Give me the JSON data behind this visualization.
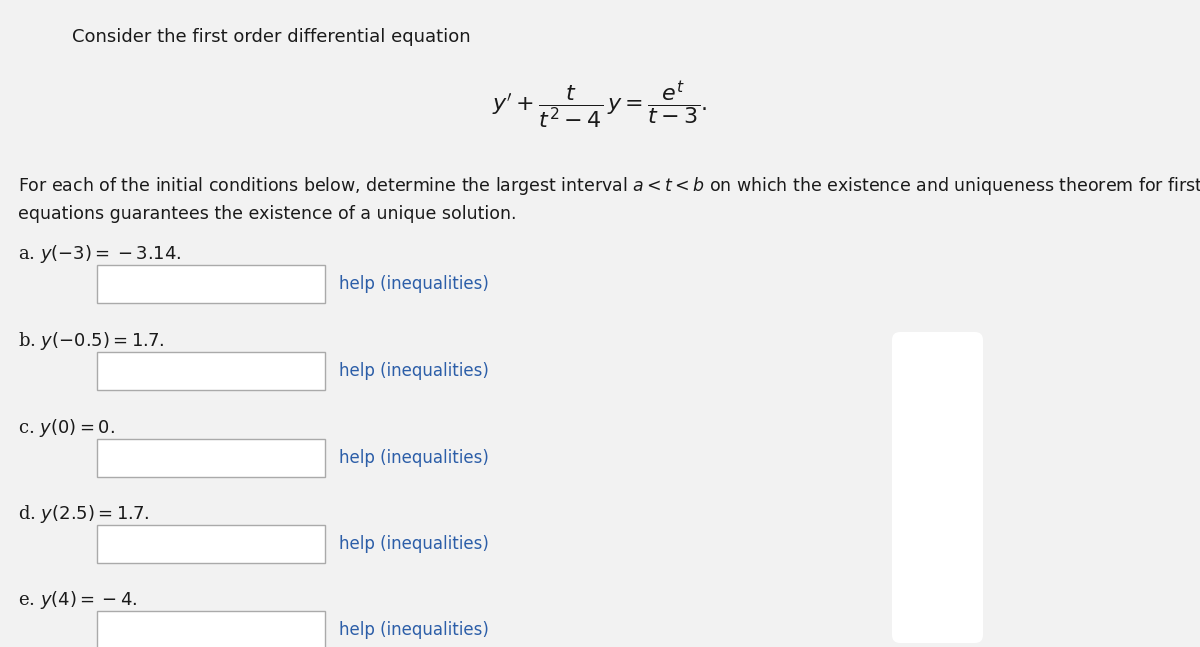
{
  "background_color": "#f2f2f2",
  "title_text": "Consider the first order differential equation",
  "title_fontsize": 13,
  "equation_fontsize": 16,
  "paragraph_fontsize": 12.5,
  "item_label_fontsize": 13,
  "help_fontsize": 12,
  "help_text": "help (inequalities)",
  "help_color": "#2c5ea8",
  "text_color": "#1a1a1a",
  "box_facecolor": "#ffffff",
  "box_edgecolor": "#aaaaaa",
  "items": [
    {
      "label": "a. $y(-3) = -3.14.$"
    },
    {
      "label": "b. $y(-0.5) = 1.7.$"
    },
    {
      "label": "c. $y(0) = 0.$"
    },
    {
      "label": "d. $y(2.5) = 1.7.$"
    },
    {
      "label": "e. $y(4) = -4.$"
    }
  ],
  "right_shape_color": "#ffffff",
  "right_shape_edge": "#e0e0e0"
}
